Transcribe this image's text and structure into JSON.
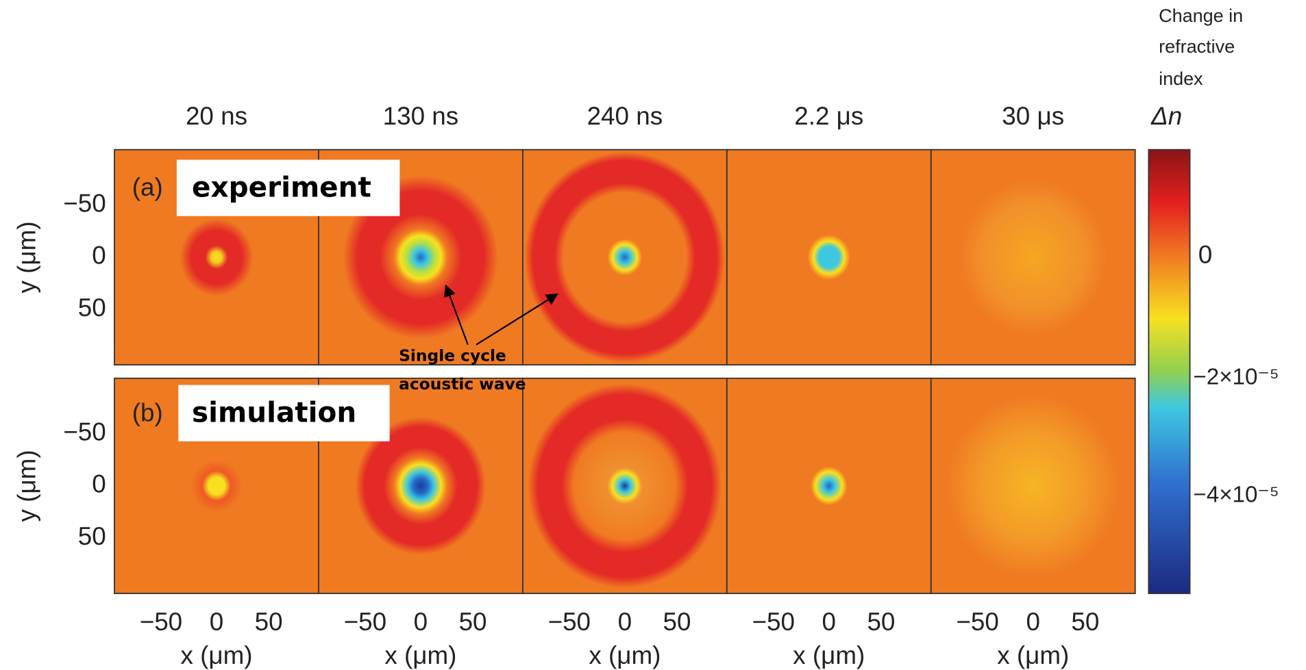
{
  "columns": [
    "20 ns",
    "130 ns",
    "240 ns",
    "2.2 μs",
    "30 μs"
  ],
  "rows": [
    {
      "tag": "(a)",
      "label": "experiment"
    },
    {
      "tag": "(b)",
      "label": "simulation"
    }
  ],
  "y_axis": {
    "label": "y (μm)",
    "ticks": [
      "−50",
      "0",
      "50"
    ]
  },
  "x_axis": {
    "label": "x (μm)",
    "ticks": [
      "−50",
      "0",
      "50"
    ]
  },
  "colorbar": {
    "caption": [
      "Change in",
      "refractive",
      "index"
    ],
    "symbol": "Δn",
    "ticks": [
      "0",
      "−2×10⁻⁵",
      "−4×10⁻⁵"
    ]
  },
  "annotation": [
    "Single cycle",
    "acoustic wave"
  ]
}
